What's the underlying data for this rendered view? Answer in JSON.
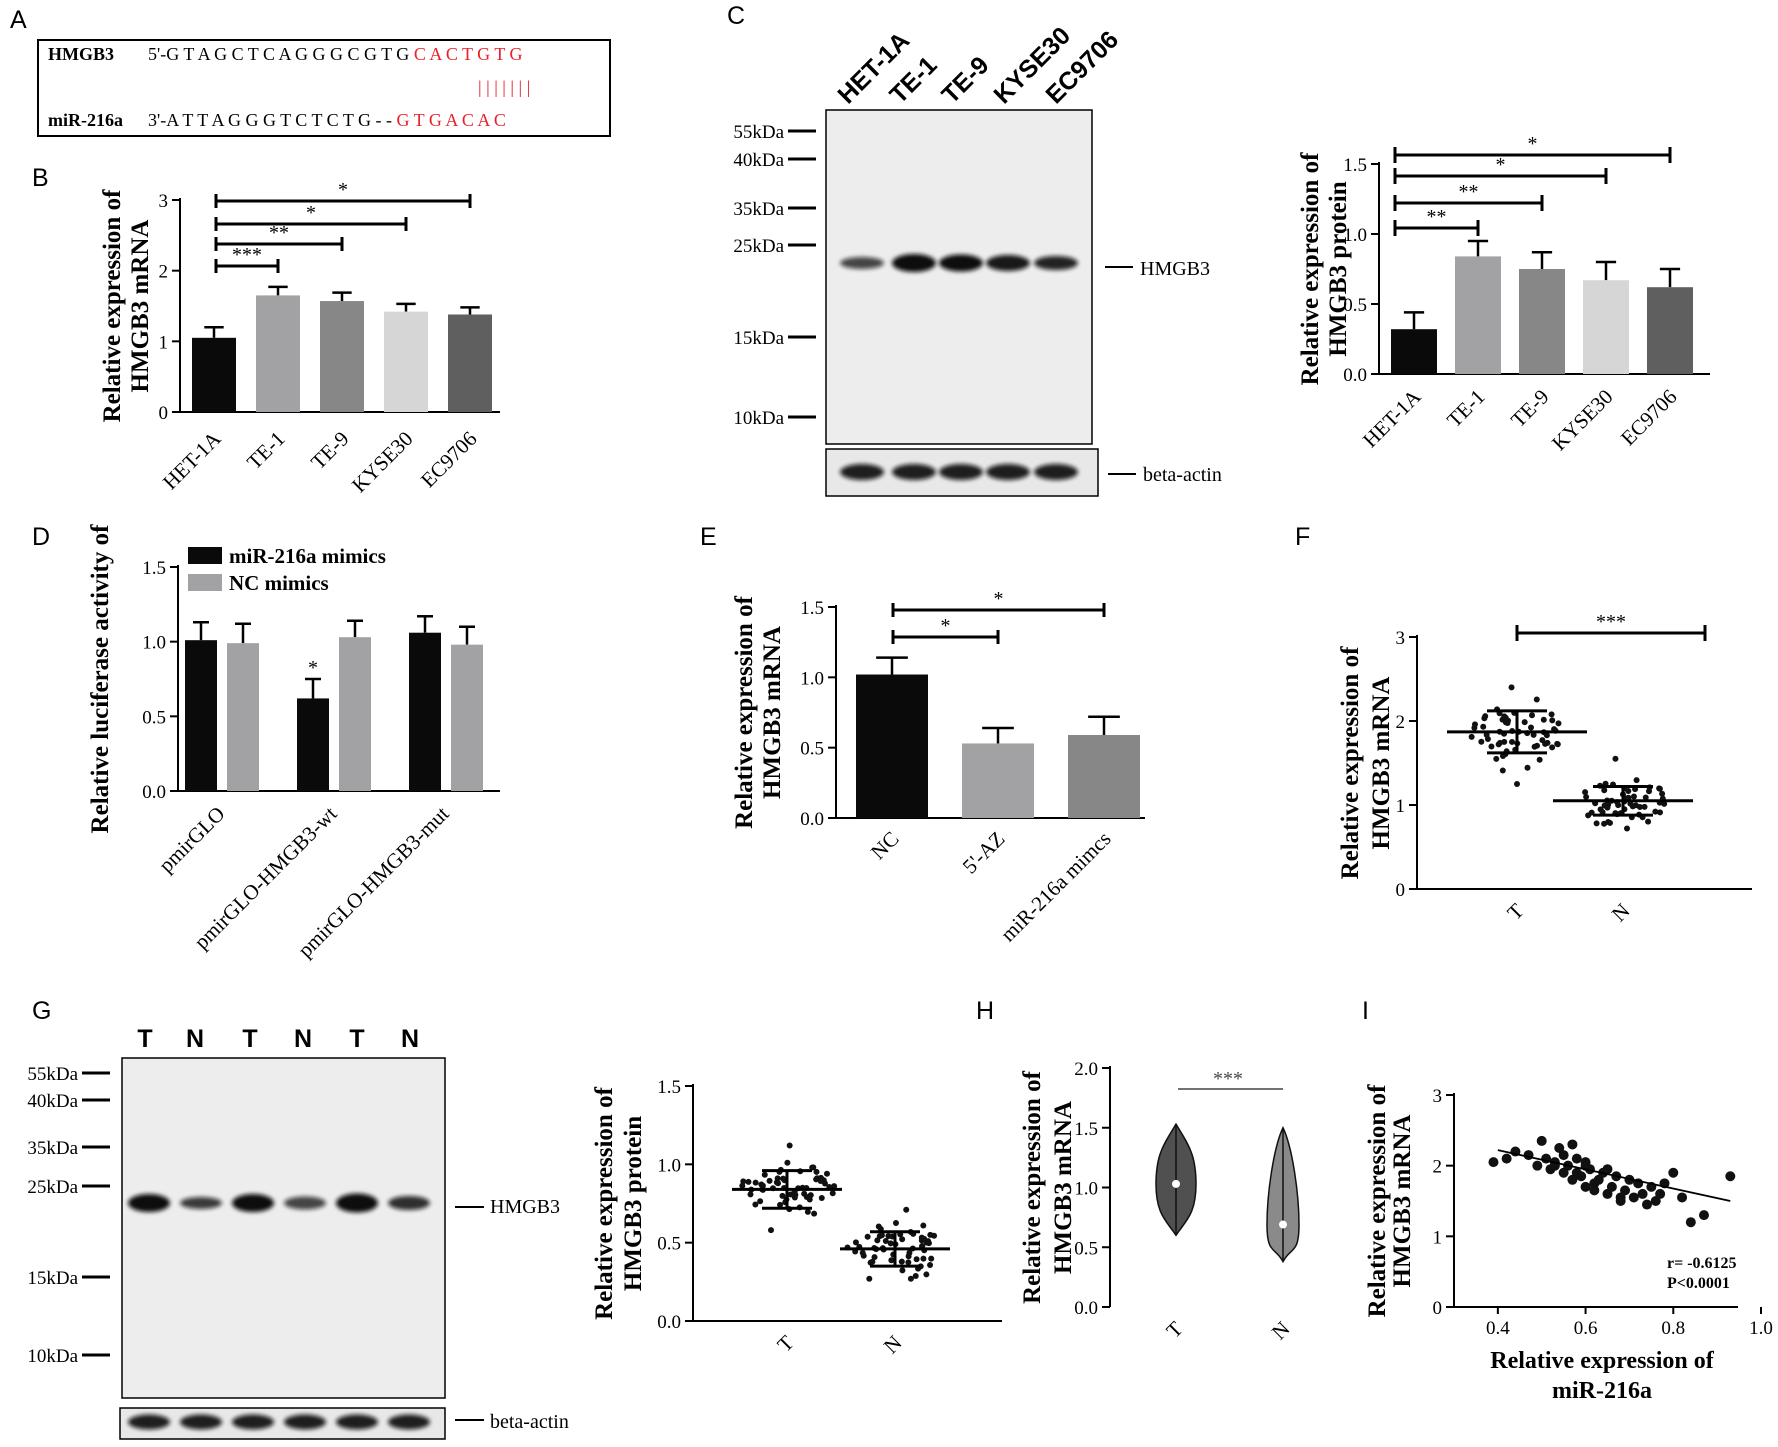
{
  "panels": {
    "A": {
      "label": "A",
      "row1_name": "HMGB3",
      "row1_seq_black": "5'-G T A G C T C A G G G C G T G ",
      "row1_seq_red": "C A C T G T G",
      "pairing": "| | | | | | |",
      "row2_name": "miR-216a",
      "row2_seq_black": "3'-A T T A G G G T C T C T G - - ",
      "row2_seq_red": "G T G A C A C"
    },
    "B": {
      "label": "B"
    },
    "C": {
      "label": "C",
      "lanes": [
        "HET-1A",
        "TE-1",
        "TE-9",
        "KYSE30",
        "EC9706"
      ],
      "markers": [
        "55kDa",
        "40kDa",
        "35kDa",
        "25kDa",
        "15kDa",
        "10kDa"
      ],
      "band_label": "HMGB3",
      "loading_label": "beta-actin"
    },
    "D": {
      "label": "D"
    },
    "E": {
      "label": "E"
    },
    "F": {
      "label": "F"
    },
    "G": {
      "label": "G",
      "lanes": [
        "T",
        "N",
        "T",
        "N",
        "T",
        "N"
      ],
      "markers": [
        "55kDa",
        "40kDa",
        "35kDa",
        "25kDa",
        "15kDa",
        "10kDa"
      ],
      "band_label": "HMGB3",
      "loading_label": "beta-actin"
    },
    "H": {
      "label": "H"
    },
    "I": {
      "label": "I"
    }
  },
  "colors": {
    "black_bar": "#0a0a0a",
    "gray1": "#a2a2a4",
    "gray2": "#878787",
    "light": "#d6d6d6",
    "dark": "#5f5f5f",
    "red": "#e8202a",
    "blot_bg": "#ededed"
  },
  "chart_data": [
    {
      "id": "B",
      "type": "bar",
      "categories": [
        "HET-1A",
        "TE-1",
        "TE-9",
        "KYSE30",
        "EC9706"
      ],
      "values": [
        1.05,
        1.65,
        1.57,
        1.42,
        1.38
      ],
      "errors": [
        0.15,
        0.12,
        0.12,
        0.11,
        0.1
      ],
      "ylabel": "Relative expression of HMGB3 mRNA",
      "ylim": [
        0,
        3
      ],
      "yticks": [
        "0",
        "1",
        "2",
        "3"
      ],
      "significance": [
        {
          "from": 0,
          "to": 1,
          "label": "***"
        },
        {
          "from": 0,
          "to": 2,
          "label": "**"
        },
        {
          "from": 0,
          "to": 3,
          "label": "*"
        },
        {
          "from": 0,
          "to": 4,
          "label": "*"
        }
      ]
    },
    {
      "id": "C",
      "type": "bar",
      "categories": [
        "HET-1A",
        "TE-1",
        "TE-9",
        "KYSE30",
        "EC9706"
      ],
      "values": [
        0.32,
        0.84,
        0.75,
        0.67,
        0.62
      ],
      "errors": [
        0.12,
        0.11,
        0.12,
        0.13,
        0.13
      ],
      "ylabel": "Relative expression of HMGB3 protein",
      "ylim": [
        0,
        1.5
      ],
      "yticks": [
        "0.0",
        "0.5",
        "1.0",
        "1.5"
      ],
      "significance": [
        {
          "from": 0,
          "to": 1,
          "label": "**"
        },
        {
          "from": 0,
          "to": 2,
          "label": "**"
        },
        {
          "from": 0,
          "to": 3,
          "label": "*"
        },
        {
          "from": 0,
          "to": 4,
          "label": "*"
        }
      ]
    },
    {
      "id": "D",
      "type": "bar",
      "categories": [
        "pmirGLO",
        "pmirGLO-HMGB3-wt",
        "pmirGLO-HMGB3-mut"
      ],
      "series": [
        {
          "name": "miR-216a mimics",
          "values": [
            1.01,
            0.62,
            1.06
          ],
          "errors": [
            0.12,
            0.13,
            0.11
          ]
        },
        {
          "name": "NC mimics",
          "values": [
            0.99,
            1.03,
            0.98
          ],
          "errors": [
            0.13,
            0.11,
            0.12
          ]
        }
      ],
      "ylabel": "Relative luciferase activity",
      "ylim": [
        0,
        1.5
      ],
      "yticks": [
        "0.0",
        "0.5",
        "1.0",
        "1.5"
      ],
      "annotation": "*"
    },
    {
      "id": "E",
      "type": "bar",
      "categories": [
        "NC",
        "5'-AZ",
        "miR-216a mimcs"
      ],
      "values": [
        1.02,
        0.53,
        0.59
      ],
      "errors": [
        0.12,
        0.11,
        0.13
      ],
      "ylabel": "Relative expression of HMGB3 mRNA",
      "ylim": [
        0,
        1.5
      ],
      "yticks": [
        "0.0",
        "0.5",
        "1.0",
        "1.5"
      ],
      "significance": [
        {
          "from": 0,
          "to": 1,
          "label": "*"
        },
        {
          "from": 0,
          "to": 2,
          "label": "*"
        }
      ]
    },
    {
      "id": "F",
      "type": "scatter",
      "categories": [
        "T",
        "N"
      ],
      "means": [
        1.87,
        1.05
      ],
      "sds": [
        0.25,
        0.17
      ],
      "ranges": [
        [
          1.25,
          2.4
        ],
        [
          0.72,
          1.55
        ]
      ],
      "n": 60,
      "ylabel": "Relative expression of HMGB3 mRNA",
      "ylim": [
        0,
        3
      ],
      "yticks": [
        "0",
        "1",
        "2",
        "3"
      ],
      "significance": [
        {
          "from": 0,
          "to": 1,
          "label": "***"
        }
      ]
    },
    {
      "id": "G",
      "type": "scatter",
      "categories": [
        "T",
        "N"
      ],
      "means": [
        0.84,
        0.46
      ],
      "sds": [
        0.12,
        0.11
      ],
      "ranges": [
        [
          0.58,
          1.12
        ],
        [
          0.27,
          0.71
        ]
      ],
      "n": 60,
      "ylabel": "Relative expression of HMGB3 protein",
      "ylim": [
        0,
        1.5
      ],
      "yticks": [
        "0.0",
        "0.5",
        "1.0",
        "1.5"
      ]
    },
    {
      "id": "H",
      "type": "violin",
      "categories": [
        "T",
        "N"
      ],
      "medians": [
        1.03,
        0.69
      ],
      "ranges": [
        [
          0.6,
          1.53
        ],
        [
          0.38,
          1.5
        ]
      ],
      "ylabel": "Relative expression of HMGB3 mRNA",
      "ylim": [
        0,
        2.0
      ],
      "yticks": [
        "0.0",
        "0.5",
        "1.0",
        "1.5",
        "2.0"
      ],
      "significance": [
        {
          "from": 0,
          "to": 1,
          "label": "***"
        }
      ]
    },
    {
      "id": "I",
      "type": "scatter",
      "x": [
        0.39,
        0.42,
        0.44,
        0.47,
        0.49,
        0.5,
        0.51,
        0.52,
        0.53,
        0.54,
        0.55,
        0.56,
        0.57,
        0.57,
        0.58,
        0.59,
        0.6,
        0.6,
        0.61,
        0.62,
        0.63,
        0.64,
        0.65,
        0.65,
        0.66,
        0.67,
        0.68,
        0.69,
        0.7,
        0.71,
        0.72,
        0.73,
        0.74,
        0.75,
        0.76,
        0.77,
        0.78,
        0.8,
        0.82,
        0.84,
        0.87,
        0.93,
        0.55,
        0.6,
        0.68,
        0.53,
        0.58,
        0.62
      ],
      "y": [
        2.05,
        2.1,
        2.2,
        2.15,
        2.0,
        2.35,
        2.1,
        1.95,
        2.05,
        2.25,
        1.9,
        2.0,
        2.3,
        1.8,
        2.1,
        1.85,
        2.0,
        1.7,
        1.95,
        1.75,
        1.8,
        1.9,
        1.6,
        1.95,
        1.7,
        1.85,
        1.5,
        1.65,
        1.8,
        1.55,
        1.75,
        1.6,
        1.45,
        1.7,
        1.5,
        1.6,
        1.75,
        1.9,
        1.55,
        1.2,
        1.3,
        1.85,
        2.15,
        2.05,
        1.55,
        2.0,
        1.9,
        1.65
      ],
      "fit": {
        "x": [
          0.4,
          0.93
        ],
        "y": [
          2.22,
          1.5
        ]
      },
      "xlabel": "Relative expression of miR-216a",
      "ylabel": "Relative expression of HMGB3 mRNA",
      "xlim": [
        0.3,
        1.0
      ],
      "ylim": [
        0,
        3
      ],
      "xticks": [
        "0.4",
        "0.6",
        "0.8",
        "1.0"
      ],
      "yticks": [
        "0",
        "1",
        "2",
        "3"
      ],
      "stats": [
        "r= -0.6125",
        "P<0.0001"
      ]
    }
  ]
}
